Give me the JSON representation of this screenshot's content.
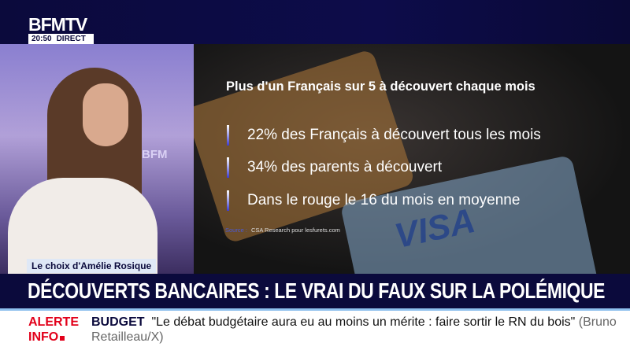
{
  "channel": {
    "logo": "BFMTV",
    "time": "20:50",
    "live": "DIRECT"
  },
  "studio": {
    "backdrop_text": "BFM"
  },
  "graphic": {
    "title": "Plus d'un Français sur 5 à découvert chaque mois",
    "bullets": [
      "22% des Français à découvert tous les mois",
      "34% des parents à découvert",
      "Dans le rouge le 16 du mois en moyenne"
    ],
    "source_label": "Source :",
    "source": "CSA Research pour lesfurets.com",
    "card_text": "VISA"
  },
  "strap": "Le choix d'Amélie Rosique",
  "headline": "DÉCOUVERTS BANCAIRES : LE VRAI DU FAUX SUR LA POLÉMIQUE",
  "ticker": {
    "alert_line1": "ALERTE",
    "alert_line2": "INFO",
    "topic": "BUDGET",
    "quote": "\"Le débat budgétaire aura eu au moins un mérite : faire sortir le RN du bois\"",
    "attribution": "(Bruno Retailleau/X)"
  },
  "colors": {
    "navy": "#0b0a3c",
    "alert_red": "#e2001a",
    "accent_blue": "#8fc0ee"
  }
}
